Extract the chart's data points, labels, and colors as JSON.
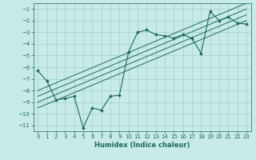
{
  "title": "",
  "xlabel": "Humidex (Indice chaleur)",
  "bg_color": "#c8ebe8",
  "grid_color": "#a0d0cc",
  "line_color": "#1a6b5a",
  "xlim": [
    -0.5,
    23.5
  ],
  "ylim": [
    -11.5,
    -0.5
  ],
  "xticks": [
    0,
    1,
    2,
    3,
    4,
    5,
    6,
    7,
    8,
    9,
    10,
    11,
    12,
    13,
    14,
    15,
    16,
    17,
    18,
    19,
    20,
    21,
    22,
    23
  ],
  "yticks": [
    -1,
    -2,
    -3,
    -4,
    -5,
    -6,
    -7,
    -8,
    -9,
    -10,
    -11
  ],
  "data_x": [
    0,
    1,
    2,
    3,
    4,
    5,
    6,
    7,
    8,
    9,
    10,
    11,
    12,
    13,
    14,
    15,
    16,
    17,
    18,
    19,
    20,
    21,
    22,
    23
  ],
  "data_y": [
    -6.3,
    -7.2,
    -8.8,
    -8.7,
    -8.5,
    -11.2,
    -9.5,
    -9.7,
    -8.5,
    -8.4,
    -4.7,
    -3.0,
    -2.8,
    -3.2,
    -3.3,
    -3.5,
    -3.2,
    -3.5,
    -4.8,
    -1.2,
    -2.0,
    -1.7,
    -2.2,
    -2.3
  ],
  "reg_lines": [
    {
      "x": [
        0,
        23
      ],
      "y": [
        -9.5,
        -2.0
      ]
    },
    {
      "x": [
        0,
        23
      ],
      "y": [
        -9.0,
        -1.5
      ]
    },
    {
      "x": [
        0,
        23
      ],
      "y": [
        -8.5,
        -1.0
      ]
    },
    {
      "x": [
        0,
        23
      ],
      "y": [
        -8.0,
        -0.5
      ]
    }
  ],
  "tick_fontsize": 5,
  "xlabel_fontsize": 6
}
